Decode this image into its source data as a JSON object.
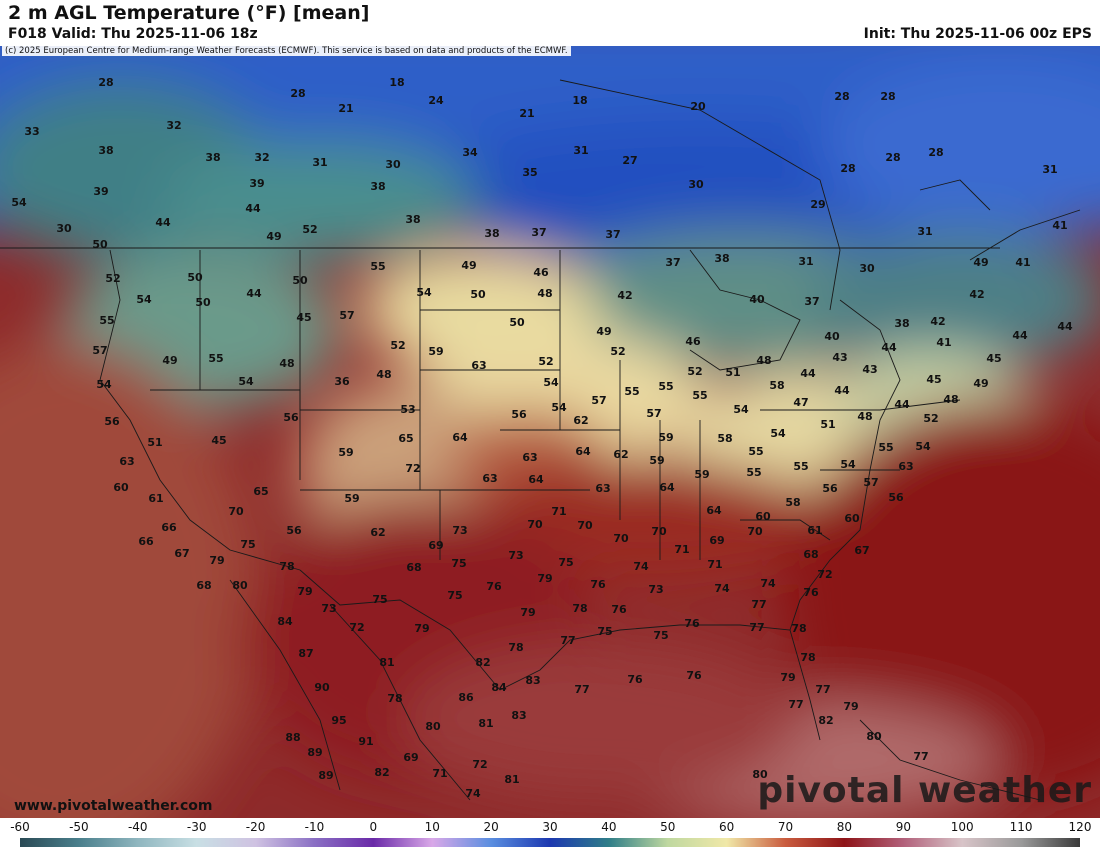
{
  "header": {
    "title": "2 m AGL Temperature (°F) [mean]",
    "valid": "F018 Valid: Thu 2025-11-06 18z",
    "init": "Init: Thu 2025-11-06 00z EPS"
  },
  "copyright": "(c) 2025 European Centre for Medium-range Weather Forecasts (ECMWF). This service is based on data and products of the ECMWF.",
  "website": "www.pivotalweather.com",
  "brand": "pivotal weather",
  "colorbar": {
    "ticks": [
      "-60",
      "-50",
      "-40",
      "-30",
      "-20",
      "-10",
      "0",
      "10",
      "20",
      "30",
      "40",
      "50",
      "60",
      "70",
      "80",
      "90",
      "100",
      "110",
      "120"
    ],
    "stops": [
      [
        "-60",
        "#2a4a55"
      ],
      [
        "-50",
        "#4a7f8c"
      ],
      [
        "-40",
        "#8fb6bf"
      ],
      [
        "-30",
        "#c8dfe4"
      ],
      [
        "-20",
        "#cfc2e2"
      ],
      [
        "-10",
        "#8a6fc4"
      ],
      [
        "0",
        "#6a2aa8"
      ],
      [
        "10",
        "#d9a8e8"
      ],
      [
        "20",
        "#5a8ee0"
      ],
      [
        "30",
        "#1c38b0"
      ],
      [
        "40",
        "#2f7e88"
      ],
      [
        "50",
        "#bfd8a0"
      ],
      [
        "60",
        "#f0e8a8"
      ],
      [
        "70",
        "#c95b3e"
      ],
      [
        "80",
        "#8e1418"
      ],
      [
        "90",
        "#b2607a"
      ],
      [
        "100",
        "#d8c4c8"
      ],
      [
        "110",
        "#9a9a9a"
      ],
      [
        "120",
        "#3a3a3a"
      ]
    ]
  },
  "labels": [
    [
      "28",
      106,
      82
    ],
    [
      "18",
      397,
      82
    ],
    [
      "28",
      298,
      93
    ],
    [
      "24",
      436,
      100
    ],
    [
      "21",
      346,
      108
    ],
    [
      "21",
      527,
      113
    ],
    [
      "18",
      580,
      100
    ],
    [
      "20",
      698,
      106
    ],
    [
      "28",
      842,
      96
    ],
    [
      "28",
      888,
      96
    ],
    [
      "33",
      32,
      131
    ],
    [
      "32",
      174,
      125
    ],
    [
      "38",
      106,
      150
    ],
    [
      "38",
      213,
      157
    ],
    [
      "32",
      262,
      157
    ],
    [
      "31",
      320,
      162
    ],
    [
      "30",
      393,
      164
    ],
    [
      "34",
      470,
      152
    ],
    [
      "31",
      581,
      150
    ],
    [
      "27",
      630,
      160
    ],
    [
      "35",
      530,
      172
    ],
    [
      "30",
      696,
      184
    ],
    [
      "28",
      848,
      168
    ],
    [
      "28",
      893,
      157
    ],
    [
      "28",
      936,
      152
    ],
    [
      "31",
      1050,
      169
    ],
    [
      "39",
      101,
      191
    ],
    [
      "39",
      257,
      183
    ],
    [
      "38",
      378,
      186
    ],
    [
      "29",
      818,
      204
    ],
    [
      "54",
      19,
      202
    ],
    [
      "44",
      163,
      222
    ],
    [
      "44",
      253,
      208
    ],
    [
      "49",
      274,
      236
    ],
    [
      "52",
      310,
      229
    ],
    [
      "38",
      413,
      219
    ],
    [
      "38",
      492,
      233
    ],
    [
      "37",
      539,
      232
    ],
    [
      "37",
      613,
      234
    ],
    [
      "31",
      925,
      231
    ],
    [
      "41",
      1060,
      225
    ],
    [
      "30",
      64,
      228
    ],
    [
      "50",
      100,
      244
    ],
    [
      "52",
      113,
      278
    ],
    [
      "50",
      195,
      277
    ],
    [
      "50",
      300,
      280
    ],
    [
      "55",
      378,
      266
    ],
    [
      "49",
      469,
      265
    ],
    [
      "46",
      541,
      272
    ],
    [
      "37",
      673,
      262
    ],
    [
      "38",
      722,
      258
    ],
    [
      "31",
      806,
      261
    ],
    [
      "30",
      867,
      268
    ],
    [
      "49",
      981,
      262
    ],
    [
      "41",
      1023,
      262
    ],
    [
      "54",
      144,
      299
    ],
    [
      "50",
      203,
      302
    ],
    [
      "44",
      254,
      293
    ],
    [
      "54",
      424,
      292
    ],
    [
      "50",
      478,
      294
    ],
    [
      "48",
      545,
      293
    ],
    [
      "42",
      625,
      295
    ],
    [
      "40",
      757,
      299
    ],
    [
      "37",
      812,
      301
    ],
    [
      "42",
      977,
      294
    ],
    [
      "55",
      107,
      320
    ],
    [
      "45",
      304,
      317
    ],
    [
      "57",
      347,
      315
    ],
    [
      "50",
      517,
      322
    ],
    [
      "49",
      604,
      331
    ],
    [
      "38",
      902,
      323
    ],
    [
      "42",
      938,
      321
    ],
    [
      "44",
      1020,
      335
    ],
    [
      "44",
      1065,
      326
    ],
    [
      "57",
      100,
      350
    ],
    [
      "49",
      170,
      360
    ],
    [
      "55",
      216,
      358
    ],
    [
      "48",
      287,
      363
    ],
    [
      "52",
      398,
      345
    ],
    [
      "59",
      436,
      351
    ],
    [
      "46",
      693,
      341
    ],
    [
      "52",
      618,
      351
    ],
    [
      "40",
      832,
      336
    ],
    [
      "44",
      889,
      347
    ],
    [
      "41",
      944,
      342
    ],
    [
      "45",
      994,
      358
    ],
    [
      "54",
      104,
      384
    ],
    [
      "54",
      246,
      381
    ],
    [
      "36",
      342,
      381
    ],
    [
      "48",
      384,
      374
    ],
    [
      "63",
      479,
      365
    ],
    [
      "52",
      546,
      361
    ],
    [
      "52",
      695,
      371
    ],
    [
      "51",
      733,
      372
    ],
    [
      "48",
      764,
      360
    ],
    [
      "43",
      840,
      357
    ],
    [
      "43",
      870,
      369
    ],
    [
      "45",
      934,
      379
    ],
    [
      "49",
      981,
      383
    ],
    [
      "56",
      112,
      421
    ],
    [
      "56",
      291,
      417
    ],
    [
      "53",
      408,
      409
    ],
    [
      "56",
      519,
      414
    ],
    [
      "54",
      551,
      382
    ],
    [
      "54",
      559,
      407
    ],
    [
      "57",
      599,
      400
    ],
    [
      "55",
      632,
      391
    ],
    [
      "55",
      666,
      386
    ],
    [
      "55",
      700,
      395
    ],
    [
      "58",
      777,
      385
    ],
    [
      "44",
      808,
      373
    ],
    [
      "44",
      842,
      390
    ],
    [
      "48",
      865,
      416
    ],
    [
      "44",
      902,
      404
    ],
    [
      "48",
      951,
      399
    ],
    [
      "47",
      801,
      402
    ],
    [
      "52",
      931,
      418
    ],
    [
      "51",
      155,
      442
    ],
    [
      "45",
      219,
      440
    ],
    [
      "65",
      406,
      438
    ],
    [
      "64",
      460,
      437
    ],
    [
      "62",
      581,
      420
    ],
    [
      "57",
      654,
      413
    ],
    [
      "54",
      741,
      409
    ],
    [
      "54",
      778,
      433
    ],
    [
      "51",
      828,
      424
    ],
    [
      "55",
      886,
      447
    ],
    [
      "54",
      923,
      446
    ],
    [
      "63",
      127,
      461
    ],
    [
      "59",
      346,
      452
    ],
    [
      "72",
      413,
      468
    ],
    [
      "63",
      530,
      457
    ],
    [
      "64",
      583,
      451
    ],
    [
      "62",
      621,
      454
    ],
    [
      "59",
      666,
      437
    ],
    [
      "58",
      725,
      438
    ],
    [
      "55",
      756,
      451
    ],
    [
      "55",
      801,
      466
    ],
    [
      "54",
      848,
      464
    ],
    [
      "63",
      906,
      466
    ],
    [
      "60",
      121,
      487
    ],
    [
      "65",
      261,
      491
    ],
    [
      "63",
      490,
      478
    ],
    [
      "64",
      536,
      479
    ],
    [
      "59",
      657,
      460
    ],
    [
      "59",
      702,
      474
    ],
    [
      "55",
      754,
      472
    ],
    [
      "56",
      830,
      488
    ],
    [
      "57",
      871,
      482
    ],
    [
      "61",
      156,
      498
    ],
    [
      "70",
      236,
      511
    ],
    [
      "59",
      352,
      498
    ],
    [
      "63",
      603,
      488
    ],
    [
      "64",
      667,
      487
    ],
    [
      "64",
      714,
      510
    ],
    [
      "58",
      793,
      502
    ],
    [
      "56",
      896,
      497
    ],
    [
      "66",
      169,
      527
    ],
    [
      "56",
      294,
      530
    ],
    [
      "62",
      378,
      532
    ],
    [
      "73",
      460,
      530
    ],
    [
      "70",
      535,
      524
    ],
    [
      "71",
      559,
      511
    ],
    [
      "70",
      585,
      525
    ],
    [
      "70",
      659,
      531
    ],
    [
      "60",
      763,
      516
    ],
    [
      "61",
      815,
      530
    ],
    [
      "60",
      852,
      518
    ],
    [
      "66",
      146,
      541
    ],
    [
      "75",
      248,
      544
    ],
    [
      "67",
      182,
      553
    ],
    [
      "79",
      217,
      560
    ],
    [
      "69",
      436,
      545
    ],
    [
      "70",
      621,
      538
    ],
    [
      "71",
      682,
      549
    ],
    [
      "69",
      717,
      540
    ],
    [
      "70",
      755,
      531
    ],
    [
      "68",
      811,
      554
    ],
    [
      "67",
      862,
      550
    ],
    [
      "78",
      287,
      566
    ],
    [
      "73",
      516,
      555
    ],
    [
      "75",
      459,
      563
    ],
    [
      "75",
      566,
      562
    ],
    [
      "71",
      715,
      564
    ],
    [
      "74",
      641,
      566
    ],
    [
      "72",
      825,
      574
    ],
    [
      "68",
      204,
      585
    ],
    [
      "80",
      240,
      585
    ],
    [
      "79",
      305,
      591
    ],
    [
      "68",
      414,
      567
    ],
    [
      "76",
      494,
      586
    ],
    [
      "79",
      545,
      578
    ],
    [
      "76",
      598,
      584
    ],
    [
      "73",
      656,
      589
    ],
    [
      "74",
      722,
      588
    ],
    [
      "74",
      768,
      583
    ],
    [
      "76",
      811,
      592
    ],
    [
      "73",
      329,
      608
    ],
    [
      "75",
      380,
      599
    ],
    [
      "75",
      455,
      595
    ],
    [
      "78",
      580,
      608
    ],
    [
      "76",
      619,
      609
    ],
    [
      "77",
      759,
      604
    ],
    [
      "84",
      285,
      621
    ],
    [
      "72",
      357,
      627
    ],
    [
      "79",
      422,
      628
    ],
    [
      "79",
      528,
      612
    ],
    [
      "76",
      692,
      623
    ],
    [
      "75",
      661,
      635
    ],
    [
      "77",
      757,
      627
    ],
    [
      "78",
      799,
      628
    ],
    [
      "77",
      568,
      640
    ],
    [
      "75",
      605,
      631
    ],
    [
      "87",
      306,
      653
    ],
    [
      "81",
      387,
      662
    ],
    [
      "82",
      483,
      662
    ],
    [
      "78",
      516,
      647
    ],
    [
      "78",
      808,
      657
    ],
    [
      "90",
      322,
      687
    ],
    [
      "77",
      582,
      689
    ],
    [
      "76",
      635,
      679
    ],
    [
      "76",
      694,
      675
    ],
    [
      "79",
      788,
      677
    ],
    [
      "77",
      823,
      689
    ],
    [
      "78",
      395,
      698
    ],
    [
      "86",
      466,
      697
    ],
    [
      "84",
      499,
      687
    ],
    [
      "83",
      533,
      680
    ],
    [
      "77",
      796,
      704
    ],
    [
      "82",
      826,
      720
    ],
    [
      "79",
      851,
      706
    ],
    [
      "95",
      339,
      720
    ],
    [
      "80",
      433,
      726
    ],
    [
      "81",
      486,
      723
    ],
    [
      "83",
      519,
      715
    ],
    [
      "88",
      293,
      737
    ],
    [
      "91",
      366,
      741
    ],
    [
      "69",
      411,
      757
    ],
    [
      "80",
      874,
      736
    ],
    [
      "77",
      921,
      756
    ],
    [
      "89",
      315,
      752
    ],
    [
      "89",
      326,
      775
    ],
    [
      "82",
      382,
      772
    ],
    [
      "71",
      440,
      773
    ],
    [
      "72",
      480,
      764
    ],
    [
      "81",
      512,
      779
    ],
    [
      "80",
      760,
      774
    ],
    [
      "74",
      473,
      793
    ]
  ]
}
